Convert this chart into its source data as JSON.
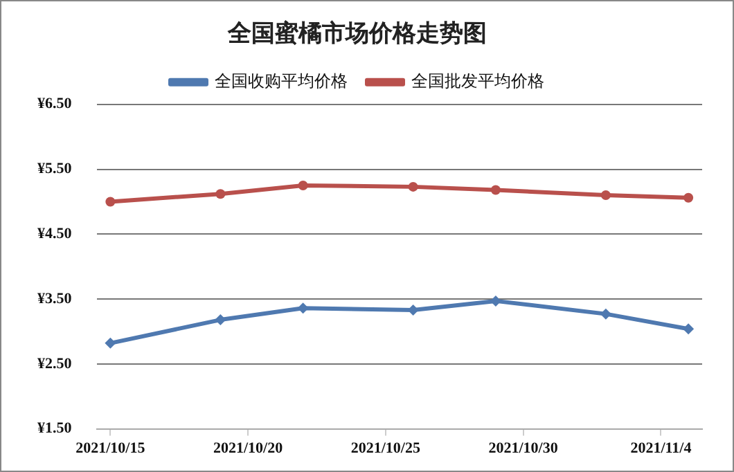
{
  "chart_data": {
    "type": "line",
    "title": "全国蜜橘市场价格走势图",
    "x": [
      "2021-10-15",
      "2021-10-19",
      "2021-10-22",
      "2021-10-26",
      "2021-10-29",
      "2021-11-02",
      "2021-11-05"
    ],
    "series": [
      {
        "name": "全国收购平均价格",
        "color": "#4f79b0",
        "marker": "diamond",
        "values": [
          2.82,
          3.18,
          3.36,
          3.33,
          3.47,
          3.27,
          3.04
        ]
      },
      {
        "name": "全国批发平均价格",
        "color": "#b9504c",
        "marker": "circle",
        "values": [
          5.0,
          5.12,
          5.25,
          5.23,
          5.18,
          5.1,
          5.06
        ]
      }
    ],
    "xlim": [
      "2021-10-14T12:00",
      "2021-11-05T12:00"
    ],
    "xticks": [
      {
        "value": "2021-10-15",
        "label": "2021/10/15"
      },
      {
        "value": "2021-10-20",
        "label": "2021/10/20"
      },
      {
        "value": "2021-10-25",
        "label": "2021/10/25"
      },
      {
        "value": "2021-10-30",
        "label": "2021/10/30"
      },
      {
        "value": "2021-11-04",
        "label": "2021/11/4"
      }
    ],
    "ylim": [
      1.5,
      6.5
    ],
    "yticks": [
      {
        "value": 1.5,
        "label": "¥1.50"
      },
      {
        "value": 2.5,
        "label": "¥2.50"
      },
      {
        "value": 3.5,
        "label": "¥3.50"
      },
      {
        "value": 4.5,
        "label": "¥4.50"
      },
      {
        "value": 5.5,
        "label": "¥5.50"
      },
      {
        "value": 6.5,
        "label": "¥6.50"
      }
    ],
    "grid": "y",
    "legend": "top",
    "line_style": "solid"
  }
}
